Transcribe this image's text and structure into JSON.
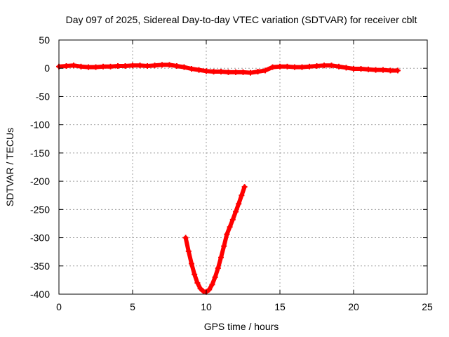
{
  "chart_data": {
    "type": "scatter",
    "title": "Day 097 of 2025, Sidereal Day-to-day VTEC variation (SDTVAR) for receiver cblt",
    "xlabel": "GPS time / hours",
    "ylabel": "SDTVAR / TECUs",
    "xlim": [
      0,
      25
    ],
    "ylim": [
      -400,
      50
    ],
    "x_ticks": [
      0,
      5,
      10,
      15,
      20,
      25
    ],
    "y_ticks": [
      50,
      0,
      -50,
      -100,
      -150,
      -200,
      -250,
      -300,
      -350,
      -400
    ],
    "grid": true,
    "series_color": "#ff0000",
    "series": [
      {
        "x": [
          0.0,
          0.5,
          1.0,
          1.5,
          2.0,
          2.5,
          3.0,
          3.5,
          4.0,
          4.5,
          5.0,
          5.5,
          6.0,
          6.5,
          7.0,
          7.5,
          8.0,
          8.5,
          9.0,
          9.5,
          10.0,
          10.5,
          11.0,
          11.5,
          12.0,
          12.5,
          13.0,
          13.5,
          14.0,
          14.5,
          15.0,
          15.5,
          16.0,
          16.5,
          17.0,
          17.5,
          18.0,
          18.5,
          19.0,
          19.5,
          20.0,
          20.5,
          21.0,
          21.5,
          22.0,
          22.5,
          23.0
        ],
        "y": [
          3,
          4,
          5,
          3,
          2,
          2,
          3,
          3,
          4,
          4,
          5,
          5,
          4,
          5,
          6,
          6,
          4,
          2,
          -1,
          -3,
          -5,
          -6,
          -6,
          -7,
          -7,
          -7,
          -8,
          -6,
          -4,
          2,
          3,
          3,
          2,
          2,
          3,
          4,
          5,
          5,
          3,
          1,
          -1,
          -1,
          -2,
          -3,
          -3,
          -4,
          -4
        ]
      },
      {
        "x": [
          8.6,
          8.8,
          9.0,
          9.2,
          9.4,
          9.6,
          9.8,
          10.0,
          10.2,
          10.4,
          10.6,
          10.8,
          11.0,
          11.2,
          11.4,
          11.6,
          11.8,
          12.0,
          12.2,
          12.4,
          12.6
        ],
        "y": [
          -300,
          -324,
          -346,
          -365,
          -380,
          -390,
          -395,
          -396,
          -392,
          -383,
          -370,
          -354,
          -335,
          -315,
          -294,
          -281,
          -268,
          -254,
          -240,
          -225,
          -210
        ]
      }
    ]
  }
}
